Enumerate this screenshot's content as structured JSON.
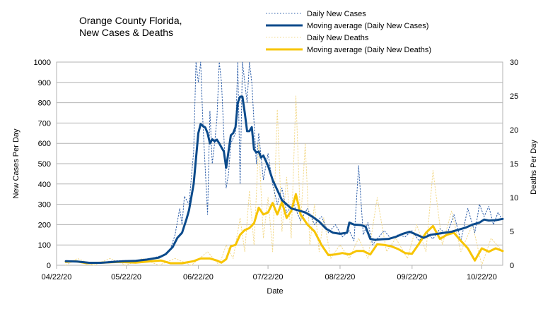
{
  "chart_data": {
    "type": "line",
    "title": [
      "Orange County Florida,",
      "New Cases & Deaths"
    ],
    "xlabel": "Date",
    "ylabel_left": "New Cases Per Day",
    "ylabel_right": "Deaths Per Day",
    "x_ticks": [
      "04/22/20",
      "05/22/20",
      "06/22/20",
      "07/22/20",
      "08/22/20",
      "09/22/20",
      "10/22/20"
    ],
    "x_range": [
      "2020-04-22",
      "2020-10-31"
    ],
    "ylim_left": [
      0,
      1000
    ],
    "ylim_right": [
      0,
      30
    ],
    "y_ticks_left": [
      0,
      100,
      200,
      300,
      400,
      500,
      600,
      700,
      800,
      900,
      1000
    ],
    "y_ticks_right": [
      0,
      5,
      10,
      15,
      20,
      25,
      30
    ],
    "grid": "horizontal",
    "legend_position": "top",
    "series": [
      {
        "name": "Daily New Cases",
        "axis": "left",
        "style": "dotted",
        "color": "#2a5ca8",
        "points": [
          [
            "2020-04-26",
            20
          ],
          [
            "2020-05-03",
            14
          ],
          [
            "2020-05-10",
            12
          ],
          [
            "2020-05-17",
            22
          ],
          [
            "2020-05-24",
            24
          ],
          [
            "2020-05-31",
            28
          ],
          [
            "2020-06-07",
            50
          ],
          [
            "2020-06-10",
            80
          ],
          [
            "2020-06-12",
            150
          ],
          [
            "2020-06-14",
            280
          ],
          [
            "2020-06-15",
            200
          ],
          [
            "2020-06-16",
            340
          ],
          [
            "2020-06-18",
            300
          ],
          [
            "2020-06-20",
            560
          ],
          [
            "2020-06-21",
            1000
          ],
          [
            "2020-06-22",
            900
          ],
          [
            "2020-06-23",
            1000
          ],
          [
            "2020-06-24",
            700
          ],
          [
            "2020-06-26",
            250
          ],
          [
            "2020-06-27",
            760
          ],
          [
            "2020-06-28",
            500
          ],
          [
            "2020-06-29",
            600
          ],
          [
            "2020-06-30",
            720
          ],
          [
            "2020-07-01",
            1000
          ],
          [
            "2020-07-02",
            900
          ],
          [
            "2020-07-04",
            380
          ],
          [
            "2020-07-05",
            450
          ],
          [
            "2020-07-06",
            600
          ],
          [
            "2020-07-08",
            650
          ],
          [
            "2020-07-09",
            1000
          ],
          [
            "2020-07-10",
            400
          ],
          [
            "2020-07-11",
            1000
          ],
          [
            "2020-07-13",
            800
          ],
          [
            "2020-07-14",
            1000
          ],
          [
            "2020-07-15",
            900
          ],
          [
            "2020-07-17",
            500
          ],
          [
            "2020-07-18",
            650
          ],
          [
            "2020-07-20",
            420
          ],
          [
            "2020-07-22",
            550
          ],
          [
            "2020-07-24",
            400
          ],
          [
            "2020-07-26",
            300
          ],
          [
            "2020-07-28",
            380
          ],
          [
            "2020-07-30",
            260
          ],
          [
            "2020-08-02",
            300
          ],
          [
            "2020-08-05",
            220
          ],
          [
            "2020-08-08",
            280
          ],
          [
            "2020-08-11",
            200
          ],
          [
            "2020-08-14",
            240
          ],
          [
            "2020-08-17",
            160
          ],
          [
            "2020-08-20",
            200
          ],
          [
            "2020-08-23",
            140
          ],
          [
            "2020-08-26",
            170
          ],
          [
            "2020-08-28",
            120
          ],
          [
            "2020-08-30",
            490
          ],
          [
            "2020-09-01",
            150
          ],
          [
            "2020-09-03",
            210
          ],
          [
            "2020-09-05",
            100
          ],
          [
            "2020-09-07",
            130
          ],
          [
            "2020-09-10",
            170
          ],
          [
            "2020-09-13",
            130
          ],
          [
            "2020-09-16",
            150
          ],
          [
            "2020-09-19",
            140
          ],
          [
            "2020-09-22",
            170
          ],
          [
            "2020-09-25",
            120
          ],
          [
            "2020-09-28",
            160
          ],
          [
            "2020-10-01",
            130
          ],
          [
            "2020-10-04",
            180
          ],
          [
            "2020-10-07",
            150
          ],
          [
            "2020-10-10",
            250
          ],
          [
            "2020-10-13",
            120
          ],
          [
            "2020-10-16",
            280
          ],
          [
            "2020-10-19",
            160
          ],
          [
            "2020-10-21",
            300
          ],
          [
            "2020-10-23",
            240
          ],
          [
            "2020-10-25",
            290
          ],
          [
            "2020-10-27",
            200
          ],
          [
            "2020-10-29",
            260
          ],
          [
            "2020-10-31",
            220
          ]
        ]
      },
      {
        "name": "Moving average (Daily New Cases)",
        "axis": "left",
        "style": "solid",
        "color": "#0b4a8b",
        "points": [
          [
            "2020-04-26",
            20
          ],
          [
            "2020-05-01",
            18
          ],
          [
            "2020-05-06",
            12
          ],
          [
            "2020-05-11",
            12
          ],
          [
            "2020-05-16",
            16
          ],
          [
            "2020-05-21",
            20
          ],
          [
            "2020-05-26",
            22
          ],
          [
            "2020-05-31",
            28
          ],
          [
            "2020-06-05",
            38
          ],
          [
            "2020-06-08",
            55
          ],
          [
            "2020-06-11",
            90
          ],
          [
            "2020-06-13",
            135
          ],
          [
            "2020-06-15",
            160
          ],
          [
            "2020-06-17",
            230
          ],
          [
            "2020-06-18",
            270
          ],
          [
            "2020-06-20",
            400
          ],
          [
            "2020-06-22",
            650
          ],
          [
            "2020-06-23",
            695
          ],
          [
            "2020-06-24",
            685
          ],
          [
            "2020-06-25",
            678
          ],
          [
            "2020-06-26",
            650
          ],
          [
            "2020-06-27",
            600
          ],
          [
            "2020-06-28",
            620
          ],
          [
            "2020-06-29",
            610
          ],
          [
            "2020-06-30",
            618
          ],
          [
            "2020-07-01",
            600
          ],
          [
            "2020-07-02",
            580
          ],
          [
            "2020-07-03",
            560
          ],
          [
            "2020-07-04",
            480
          ],
          [
            "2020-07-05",
            560
          ],
          [
            "2020-07-06",
            640
          ],
          [
            "2020-07-07",
            650
          ],
          [
            "2020-07-08",
            680
          ],
          [
            "2020-07-09",
            800
          ],
          [
            "2020-07-10",
            830
          ],
          [
            "2020-07-11",
            830
          ],
          [
            "2020-07-12",
            750
          ],
          [
            "2020-07-13",
            660
          ],
          [
            "2020-07-14",
            660
          ],
          [
            "2020-07-15",
            680
          ],
          [
            "2020-07-16",
            570
          ],
          [
            "2020-07-17",
            555
          ],
          [
            "2020-07-18",
            560
          ],
          [
            "2020-07-19",
            530
          ],
          [
            "2020-07-20",
            540
          ],
          [
            "2020-07-22",
            490
          ],
          [
            "2020-07-24",
            420
          ],
          [
            "2020-07-26",
            370
          ],
          [
            "2020-07-28",
            320
          ],
          [
            "2020-07-30",
            300
          ],
          [
            "2020-08-01",
            280
          ],
          [
            "2020-08-04",
            270
          ],
          [
            "2020-08-07",
            260
          ],
          [
            "2020-08-10",
            240
          ],
          [
            "2020-08-13",
            215
          ],
          [
            "2020-08-16",
            180
          ],
          [
            "2020-08-19",
            160
          ],
          [
            "2020-08-22",
            155
          ],
          [
            "2020-08-25",
            160
          ],
          [
            "2020-08-26",
            210
          ],
          [
            "2020-08-28",
            200
          ],
          [
            "2020-08-31",
            198
          ],
          [
            "2020-09-02",
            190
          ],
          [
            "2020-09-04",
            130
          ],
          [
            "2020-09-06",
            125
          ],
          [
            "2020-09-09",
            128
          ],
          [
            "2020-09-12",
            130
          ],
          [
            "2020-09-15",
            140
          ],
          [
            "2020-09-18",
            155
          ],
          [
            "2020-09-21",
            165
          ],
          [
            "2020-09-24",
            150
          ],
          [
            "2020-09-27",
            135
          ],
          [
            "2020-09-30",
            150
          ],
          [
            "2020-10-03",
            155
          ],
          [
            "2020-10-06",
            160
          ],
          [
            "2020-10-09",
            165
          ],
          [
            "2020-10-12",
            175
          ],
          [
            "2020-10-15",
            185
          ],
          [
            "2020-10-18",
            200
          ],
          [
            "2020-10-21",
            210
          ],
          [
            "2020-10-23",
            225
          ],
          [
            "2020-10-25",
            220
          ],
          [
            "2020-10-28",
            222
          ],
          [
            "2020-10-31",
            228
          ]
        ]
      },
      {
        "name": "Daily New Deaths",
        "axis": "right",
        "style": "dotted",
        "color": "#f3d98a",
        "points": [
          [
            "2020-04-26",
            0
          ],
          [
            "2020-05-01",
            1
          ],
          [
            "2020-05-08",
            0
          ],
          [
            "2020-05-15",
            1
          ],
          [
            "2020-05-22",
            0
          ],
          [
            "2020-05-29",
            1
          ],
          [
            "2020-06-05",
            0
          ],
          [
            "2020-06-12",
            1
          ],
          [
            "2020-06-19",
            0
          ],
          [
            "2020-06-26",
            2
          ],
          [
            "2020-07-01",
            0
          ],
          [
            "2020-07-04",
            3
          ],
          [
            "2020-07-07",
            1
          ],
          [
            "2020-07-10",
            7
          ],
          [
            "2020-07-12",
            2
          ],
          [
            "2020-07-14",
            11
          ],
          [
            "2020-07-16",
            3
          ],
          [
            "2020-07-18",
            18
          ],
          [
            "2020-07-20",
            4
          ],
          [
            "2020-07-22",
            10
          ],
          [
            "2020-07-24",
            2
          ],
          [
            "2020-07-26",
            23
          ],
          [
            "2020-07-28",
            5
          ],
          [
            "2020-07-30",
            13
          ],
          [
            "2020-08-01",
            4
          ],
          [
            "2020-08-03",
            25
          ],
          [
            "2020-08-05",
            6
          ],
          [
            "2020-08-07",
            18
          ],
          [
            "2020-08-09",
            3
          ],
          [
            "2020-08-11",
            9
          ],
          [
            "2020-08-13",
            2
          ],
          [
            "2020-08-15",
            7
          ],
          [
            "2020-08-18",
            1
          ],
          [
            "2020-08-22",
            3
          ],
          [
            "2020-08-26",
            1
          ],
          [
            "2020-08-30",
            4
          ],
          [
            "2020-09-03",
            1
          ],
          [
            "2020-09-07",
            10
          ],
          [
            "2020-09-11",
            2
          ],
          [
            "2020-09-15",
            4
          ],
          [
            "2020-09-20",
            1
          ],
          [
            "2020-09-24",
            6
          ],
          [
            "2020-09-28",
            2
          ],
          [
            "2020-10-01",
            14
          ],
          [
            "2020-10-05",
            3
          ],
          [
            "2020-10-09",
            8
          ],
          [
            "2020-10-13",
            2
          ],
          [
            "2020-10-18",
            6
          ],
          [
            "2020-10-22",
            0
          ],
          [
            "2020-10-26",
            4
          ],
          [
            "2020-10-31",
            2
          ]
        ]
      },
      {
        "name": "Moving average (Daily New Deaths)",
        "axis": "right",
        "style": "solid",
        "color": "#f7c400",
        "points": [
          [
            "2020-04-26",
            0.5
          ],
          [
            "2020-04-30",
            0.6
          ],
          [
            "2020-05-05",
            0.3
          ],
          [
            "2020-05-12",
            0.4
          ],
          [
            "2020-05-19",
            0.5
          ],
          [
            "2020-05-26",
            0.4
          ],
          [
            "2020-06-02",
            0.6
          ],
          [
            "2020-06-06",
            0.7
          ],
          [
            "2020-06-10",
            0.3
          ],
          [
            "2020-06-15",
            0.3
          ],
          [
            "2020-06-20",
            0.6
          ],
          [
            "2020-06-23",
            1.0
          ],
          [
            "2020-06-27",
            1.0
          ],
          [
            "2020-06-30",
            0.7
          ],
          [
            "2020-07-02",
            0.4
          ],
          [
            "2020-07-04",
            0.9
          ],
          [
            "2020-07-06",
            2.8
          ],
          [
            "2020-07-08",
            3.0
          ],
          [
            "2020-07-10",
            4.5
          ],
          [
            "2020-07-12",
            5.2
          ],
          [
            "2020-07-14",
            5.5
          ],
          [
            "2020-07-16",
            6.2
          ],
          [
            "2020-07-18",
            8.5
          ],
          [
            "2020-07-20",
            7.5
          ],
          [
            "2020-07-22",
            7.8
          ],
          [
            "2020-07-24",
            9.2
          ],
          [
            "2020-07-26",
            7.5
          ],
          [
            "2020-07-28",
            9.3
          ],
          [
            "2020-07-30",
            7.0
          ],
          [
            "2020-08-01",
            8.0
          ],
          [
            "2020-08-03",
            10.5
          ],
          [
            "2020-08-05",
            7.5
          ],
          [
            "2020-08-08",
            6.0
          ],
          [
            "2020-08-11",
            5.0
          ],
          [
            "2020-08-14",
            3.0
          ],
          [
            "2020-08-17",
            1.5
          ],
          [
            "2020-08-20",
            1.6
          ],
          [
            "2020-08-23",
            1.8
          ],
          [
            "2020-08-26",
            1.6
          ],
          [
            "2020-08-29",
            2.1
          ],
          [
            "2020-09-01",
            2.1
          ],
          [
            "2020-09-04",
            1.6
          ],
          [
            "2020-09-07",
            3.1
          ],
          [
            "2020-09-10",
            3.0
          ],
          [
            "2020-09-13",
            2.8
          ],
          [
            "2020-09-16",
            2.4
          ],
          [
            "2020-09-19",
            1.8
          ],
          [
            "2020-09-22",
            1.7
          ],
          [
            "2020-09-25",
            3.2
          ],
          [
            "2020-09-28",
            4.8
          ],
          [
            "2020-10-01",
            5.8
          ],
          [
            "2020-10-04",
            3.9
          ],
          [
            "2020-10-07",
            4.5
          ],
          [
            "2020-10-10",
            4.8
          ],
          [
            "2020-10-13",
            3.6
          ],
          [
            "2020-10-16",
            2.5
          ],
          [
            "2020-10-19",
            0.7
          ],
          [
            "2020-10-22",
            2.5
          ],
          [
            "2020-10-25",
            2.0
          ],
          [
            "2020-10-28",
            2.5
          ],
          [
            "2020-10-31",
            2.1
          ]
        ]
      }
    ]
  }
}
